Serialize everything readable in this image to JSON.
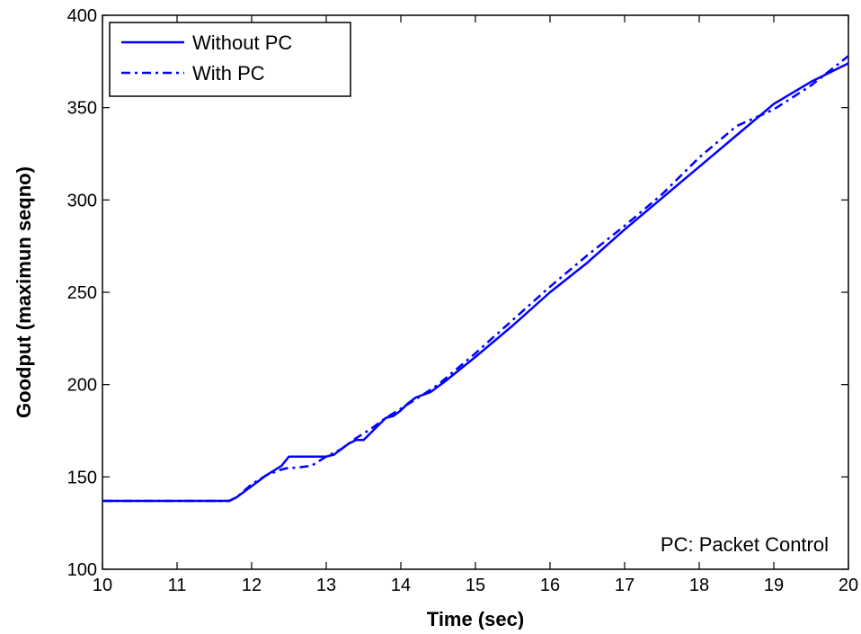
{
  "chart_data": {
    "type": "line",
    "xlabel": "Time (sec)",
    "ylabel": "Goodput (maximun seqno)",
    "xlim": [
      10,
      20
    ],
    "ylim": [
      100,
      400
    ],
    "xticks": [
      10,
      11,
      12,
      13,
      14,
      15,
      16,
      17,
      18,
      19,
      20
    ],
    "yticks": [
      100,
      150,
      200,
      250,
      300,
      350,
      400
    ],
    "grid": false,
    "legend_position": "top-left",
    "annotation": "PC: Packet Control",
    "series": [
      {
        "name": "Without PC",
        "style": "solid",
        "color": "#0000ff",
        "x": [
          10,
          11.0,
          11.7,
          11.8,
          12.0,
          12.2,
          12.4,
          12.5,
          12.6,
          12.8,
          13.0,
          13.1,
          13.2,
          13.3,
          13.4,
          13.5,
          13.6,
          13.7,
          13.8,
          13.9,
          14.0,
          14.1,
          14.2,
          14.4,
          14.6,
          15.0,
          15.5,
          16.0,
          16.5,
          17.0,
          17.5,
          18.0,
          18.5,
          19.0,
          19.5,
          20.0
        ],
        "y": [
          137,
          137,
          137,
          139,
          145,
          151,
          156,
          161,
          161,
          161,
          161,
          162,
          165,
          168,
          170,
          170,
          174,
          178,
          182,
          183,
          186,
          190,
          193,
          196,
          202,
          215,
          232,
          250,
          266,
          284,
          301,
          318,
          335,
          352,
          364,
          374
        ]
      },
      {
        "name": "With PC",
        "style": "dashdot",
        "color": "#0000ff",
        "x": [
          10,
          11.0,
          11.7,
          11.8,
          12.0,
          12.2,
          12.4,
          12.5,
          12.6,
          12.8,
          13.0,
          13.2,
          13.4,
          13.6,
          13.8,
          14.0,
          14.2,
          14.5,
          15.0,
          15.5,
          16.0,
          16.5,
          17.0,
          17.5,
          18.0,
          18.5,
          19.0,
          19.5,
          20.0
        ],
        "y": [
          137,
          137,
          137,
          139,
          146,
          151,
          154,
          155,
          155,
          156,
          161,
          165,
          171,
          176,
          182,
          187,
          192,
          200,
          217,
          235,
          253,
          270,
          286,
          303,
          323,
          340,
          349,
          362,
          378
        ]
      }
    ]
  }
}
